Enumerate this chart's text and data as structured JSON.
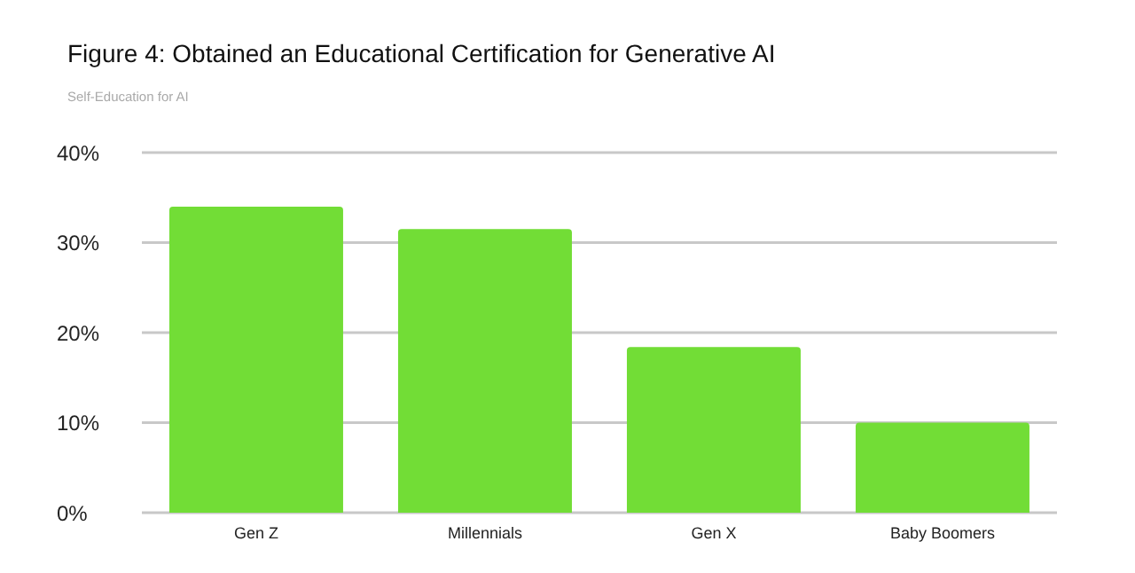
{
  "chart_data": {
    "type": "bar",
    "title": "Figure 4: Obtained an Educational Certification for Generative AI",
    "subtitle": "Self-Education for AI",
    "categories": [
      "Gen Z",
      "Millennials",
      "Gen X",
      "Baby Boomers"
    ],
    "values": [
      34,
      31.5,
      18.4,
      10
    ],
    "color": "#72dd36",
    "ylim": [
      0,
      40
    ],
    "yticks": [
      {
        "value": 0,
        "label": "0%"
      },
      {
        "value": 10,
        "label": "10%"
      },
      {
        "value": 20,
        "label": "20%"
      },
      {
        "value": 30,
        "label": "30%"
      },
      {
        "value": 40,
        "label": "40%"
      }
    ],
    "grid": "y"
  }
}
